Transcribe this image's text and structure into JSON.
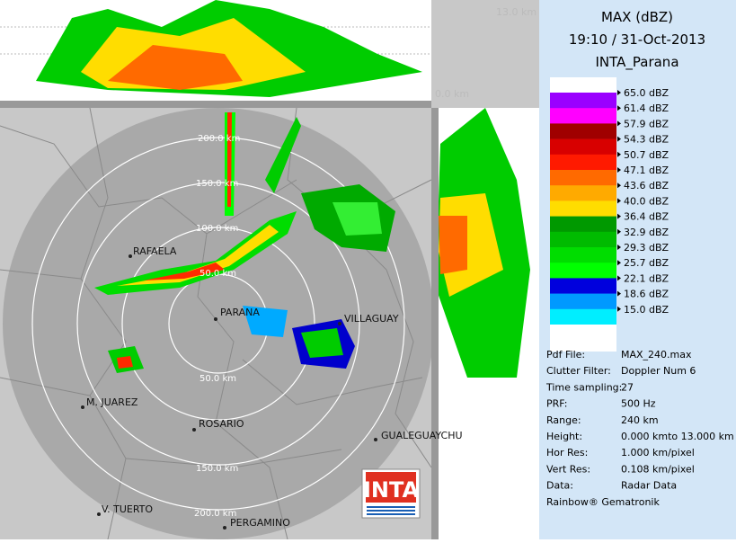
{
  "header": {
    "title": "MAX (dBZ)",
    "datetime": "19:10 / 31-Oct-2013",
    "site": "INTA_Parana"
  },
  "legend": {
    "items": [
      {
        "label": "65.0 dBZ",
        "color": "#9a00ff"
      },
      {
        "label": "61.4 dBZ",
        "color": "#ff00ff"
      },
      {
        "label": "57.9 dBZ",
        "color": "#a00000"
      },
      {
        "label": "54.3 dBZ",
        "color": "#d80000"
      },
      {
        "label": "50.7 dBZ",
        "color": "#ff1a00"
      },
      {
        "label": "47.1 dBZ",
        "color": "#ff6a00"
      },
      {
        "label": "43.6 dBZ",
        "color": "#ffaa00"
      },
      {
        "label": "40.0 dBZ",
        "color": "#ffdd00"
      },
      {
        "label": "36.4 dBZ",
        "color": "#009900"
      },
      {
        "label": "32.9 dBZ",
        "color": "#00bb00"
      },
      {
        "label": "29.3 dBZ",
        "color": "#00dd00"
      },
      {
        "label": "25.7 dBZ",
        "color": "#00ff00"
      },
      {
        "label": "22.1 dBZ",
        "color": "#0000dd"
      },
      {
        "label": "18.6 dBZ",
        "color": "#0099ff"
      },
      {
        "label": "15.0 dBZ",
        "color": "#00eeff"
      }
    ]
  },
  "info": [
    [
      "Pdf File:",
      "MAX_240.max"
    ],
    [
      "Clutter Filter:",
      "Doppler Num 6"
    ],
    [
      "Time sampling:",
      "27"
    ],
    [
      "PRF:",
      "500 Hz"
    ],
    [
      "Range:",
      "240 km"
    ],
    [
      "Height:",
      "0.000 kmto 13.000 km"
    ],
    [
      "Hor Res:",
      "1.000 km/pixel"
    ],
    [
      "Vert Res:",
      "0.108 km/pixel"
    ],
    [
      "Data:",
      "Radar Data"
    ]
  ],
  "footer": "Rainbow® Gematronik",
  "side": {
    "top_height": "13.0 km",
    "zero_height": "0.0 km"
  },
  "rings": [
    "200.0 km",
    "150.0 km",
    "100.0 km",
    "50.0 km",
    "50.0 km",
    "150.0 km",
    "200.0 km"
  ],
  "cities": [
    "RAFAELA",
    "PARANA",
    "VILLAGUAY",
    "M. JUAREZ",
    "ROSARIO",
    "GUALEGUAYCHU",
    "V. TUERTO",
    "PERGAMINO"
  ],
  "logo": "INTA"
}
